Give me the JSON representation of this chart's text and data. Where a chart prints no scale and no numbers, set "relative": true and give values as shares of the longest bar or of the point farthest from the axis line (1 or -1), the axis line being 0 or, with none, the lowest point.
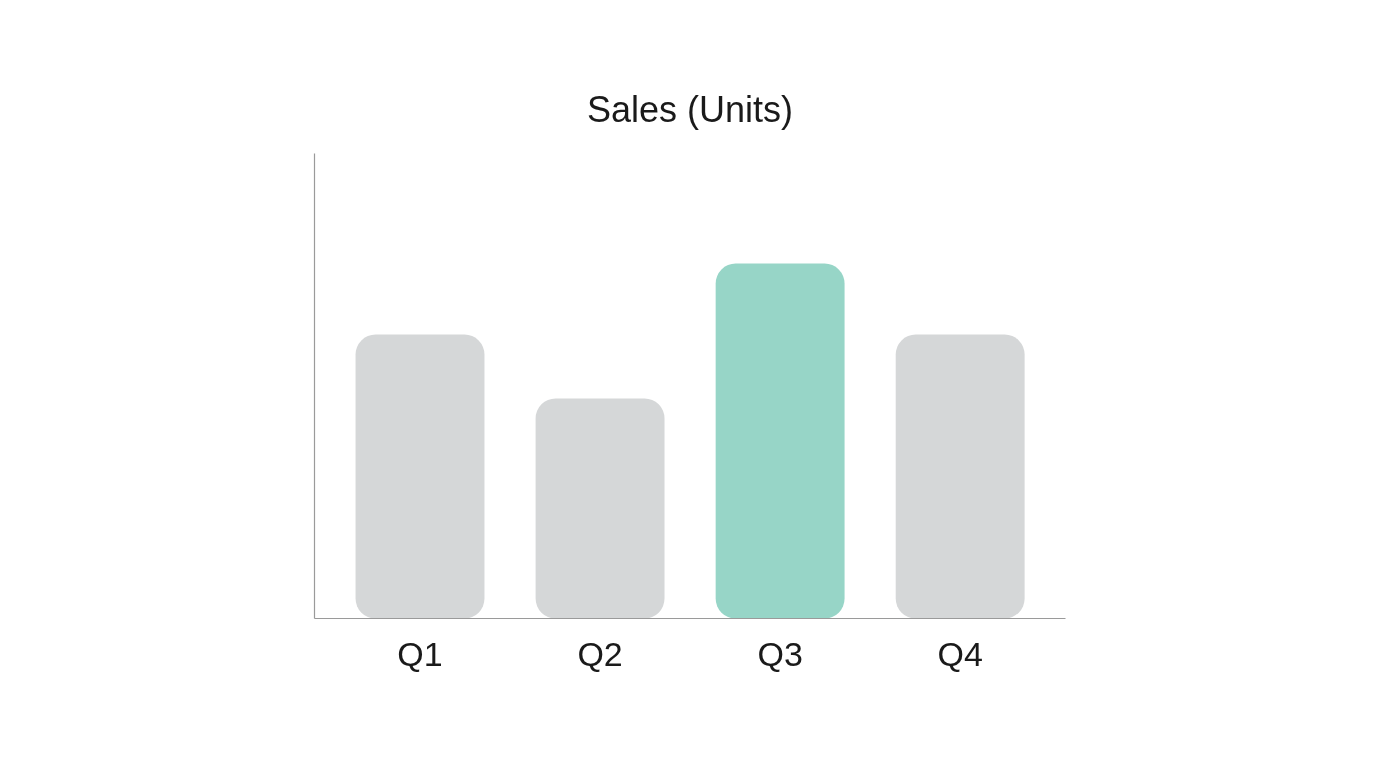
{
  "chart_data": {
    "type": "bar",
    "title": "Sales (Units)",
    "categories": [
      "Q1",
      "Q2",
      "Q3",
      "Q4"
    ],
    "values": [
      0.8,
      0.62,
      1,
      0.8
    ],
    "colors": [
      "#d5d7d8",
      "#d5d7d8",
      "#97d5c7",
      "#d5d7d8"
    ],
    "relative": true
  }
}
